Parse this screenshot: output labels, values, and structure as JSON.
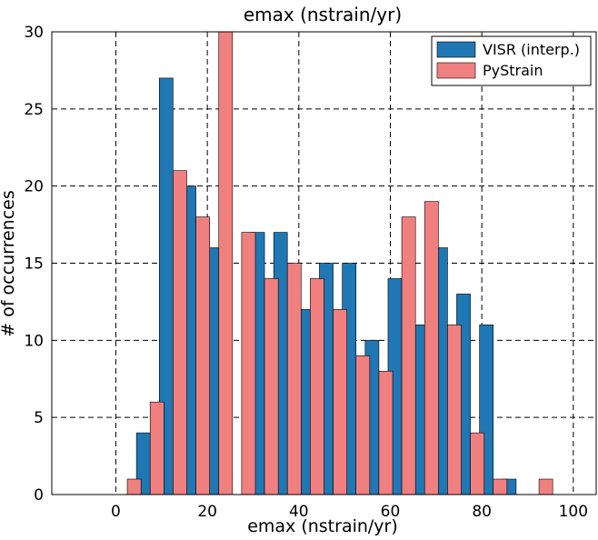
{
  "chart_data": {
    "type": "bar",
    "title": "emax (nstrain/yr)",
    "xlabel": "emax (nstrain/yr)",
    "ylabel": "# of occurrences",
    "xlim": [
      -14,
      105
    ],
    "ylim": [
      0,
      30
    ],
    "xticks": [
      0,
      20,
      40,
      60,
      80,
      100
    ],
    "yticks": [
      0,
      5,
      10,
      15,
      20,
      25,
      30
    ],
    "grid": true,
    "grid_style": "dashed",
    "legend_position": "top-right",
    "bar_width": 3.0,
    "series": [
      {
        "name": "VISR (interp.)",
        "color": "#1f77b4",
        "x": [
          -12.5,
          -7.5,
          -2.5,
          2.5,
          7.5,
          12.5,
          17.5,
          22.5,
          27.5,
          32.5,
          37.5,
          42.5,
          47.5,
          52.5,
          57.5,
          62.5,
          67.5,
          72.5,
          77.5,
          82.5,
          87.5,
          92.5,
          97.5
        ],
        "values": [
          0,
          0,
          0,
          0,
          4,
          27,
          20,
          16,
          0,
          17,
          17,
          12,
          15,
          15,
          10,
          14,
          11,
          16,
          13,
          11,
          1,
          0,
          0
        ]
      },
      {
        "name": "PyStrain",
        "color": "#f08080",
        "x": [
          -12.5,
          -7.5,
          -2.5,
          2.5,
          7.5,
          12.5,
          17.5,
          22.5,
          27.5,
          32.5,
          37.5,
          42.5,
          47.5,
          52.5,
          57.5,
          62.5,
          67.5,
          72.5,
          77.5,
          82.5,
          87.5,
          92.5,
          97.5
        ],
        "values": [
          0,
          0,
          0,
          1,
          6,
          21,
          18,
          30,
          17,
          14,
          15,
          14,
          12,
          9,
          8,
          18,
          19,
          11,
          4,
          1,
          0,
          1,
          0
        ]
      }
    ]
  }
}
